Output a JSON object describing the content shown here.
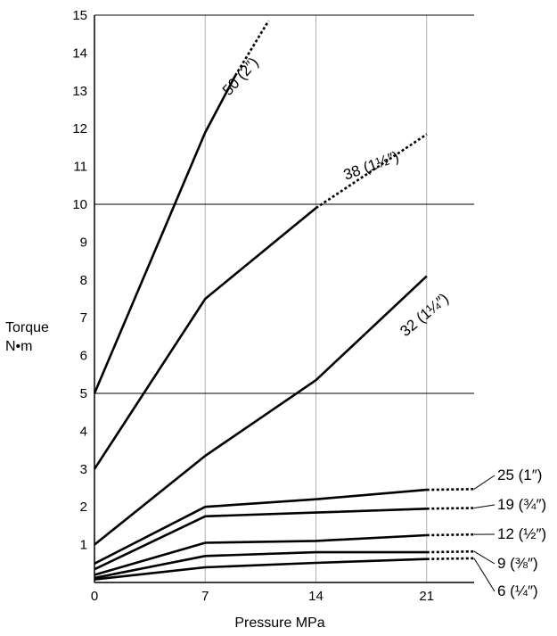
{
  "chart_data": {
    "type": "line",
    "xlabel": "Pressure MPa",
    "ylabel": [
      "Torque",
      "N•m"
    ],
    "xlim": [
      0,
      24
    ],
    "ylim": [
      0,
      15
    ],
    "x_ticks": [
      0,
      7,
      14,
      21
    ],
    "y_ticks": [
      1,
      2,
      3,
      4,
      5,
      6,
      7,
      8,
      9,
      10,
      11,
      12,
      13,
      14,
      15
    ],
    "grid": {
      "vertical_at_x": [
        7,
        14,
        21
      ],
      "horizontal_at_y": [
        5,
        10,
        15
      ]
    },
    "series": [
      {
        "name": "50 (2″)",
        "solid": [
          [
            0,
            5.0
          ],
          [
            7,
            11.9
          ],
          [
            8.9,
            13.4
          ]
        ],
        "dotted": [
          [
            8.9,
            13.4
          ],
          [
            11,
            14.85
          ]
        ]
      },
      {
        "name": "38 (1½″)",
        "solid": [
          [
            0,
            3.0
          ],
          [
            7,
            7.5
          ],
          [
            14,
            9.9
          ]
        ],
        "dotted": [
          [
            14,
            9.9
          ],
          [
            21,
            11.85
          ]
        ]
      },
      {
        "name": "32 (1¼″)",
        "solid": [
          [
            0,
            1.0
          ],
          [
            7,
            3.35
          ],
          [
            14,
            5.35
          ],
          [
            21,
            8.1
          ]
        ],
        "dotted": []
      },
      {
        "name": "25 (1″)",
        "solid": [
          [
            0,
            0.5
          ],
          [
            7,
            2.0
          ],
          [
            14,
            2.2
          ],
          [
            21,
            2.45
          ]
        ],
        "dotted": [
          [
            21,
            2.45
          ],
          [
            24,
            2.47
          ]
        ]
      },
      {
        "name": "19 (¾″)",
        "solid": [
          [
            0,
            0.35
          ],
          [
            7,
            1.75
          ],
          [
            14,
            1.85
          ],
          [
            21,
            1.95
          ]
        ],
        "dotted": [
          [
            21,
            1.95
          ],
          [
            24,
            1.97
          ]
        ]
      },
      {
        "name": "12 (½″)",
        "solid": [
          [
            0,
            0.2
          ],
          [
            7,
            1.05
          ],
          [
            14,
            1.1
          ],
          [
            21,
            1.25
          ]
        ],
        "dotted": [
          [
            21,
            1.25
          ],
          [
            24,
            1.27
          ]
        ]
      },
      {
        "name": "9 (⅜″)",
        "solid": [
          [
            0,
            0.12
          ],
          [
            7,
            0.7
          ],
          [
            14,
            0.8
          ],
          [
            21,
            0.8
          ]
        ],
        "dotted": [
          [
            21,
            0.8
          ],
          [
            24,
            0.82
          ]
        ]
      },
      {
        "name": "6 (¼″)",
        "solid": [
          [
            0,
            0.08
          ],
          [
            7,
            0.4
          ],
          [
            14,
            0.52
          ],
          [
            21,
            0.62
          ]
        ],
        "dotted": [
          [
            21,
            0.62
          ],
          [
            24,
            0.64
          ]
        ]
      }
    ],
    "line_color": "#000000",
    "gridline_color": "#b0b0b0"
  }
}
